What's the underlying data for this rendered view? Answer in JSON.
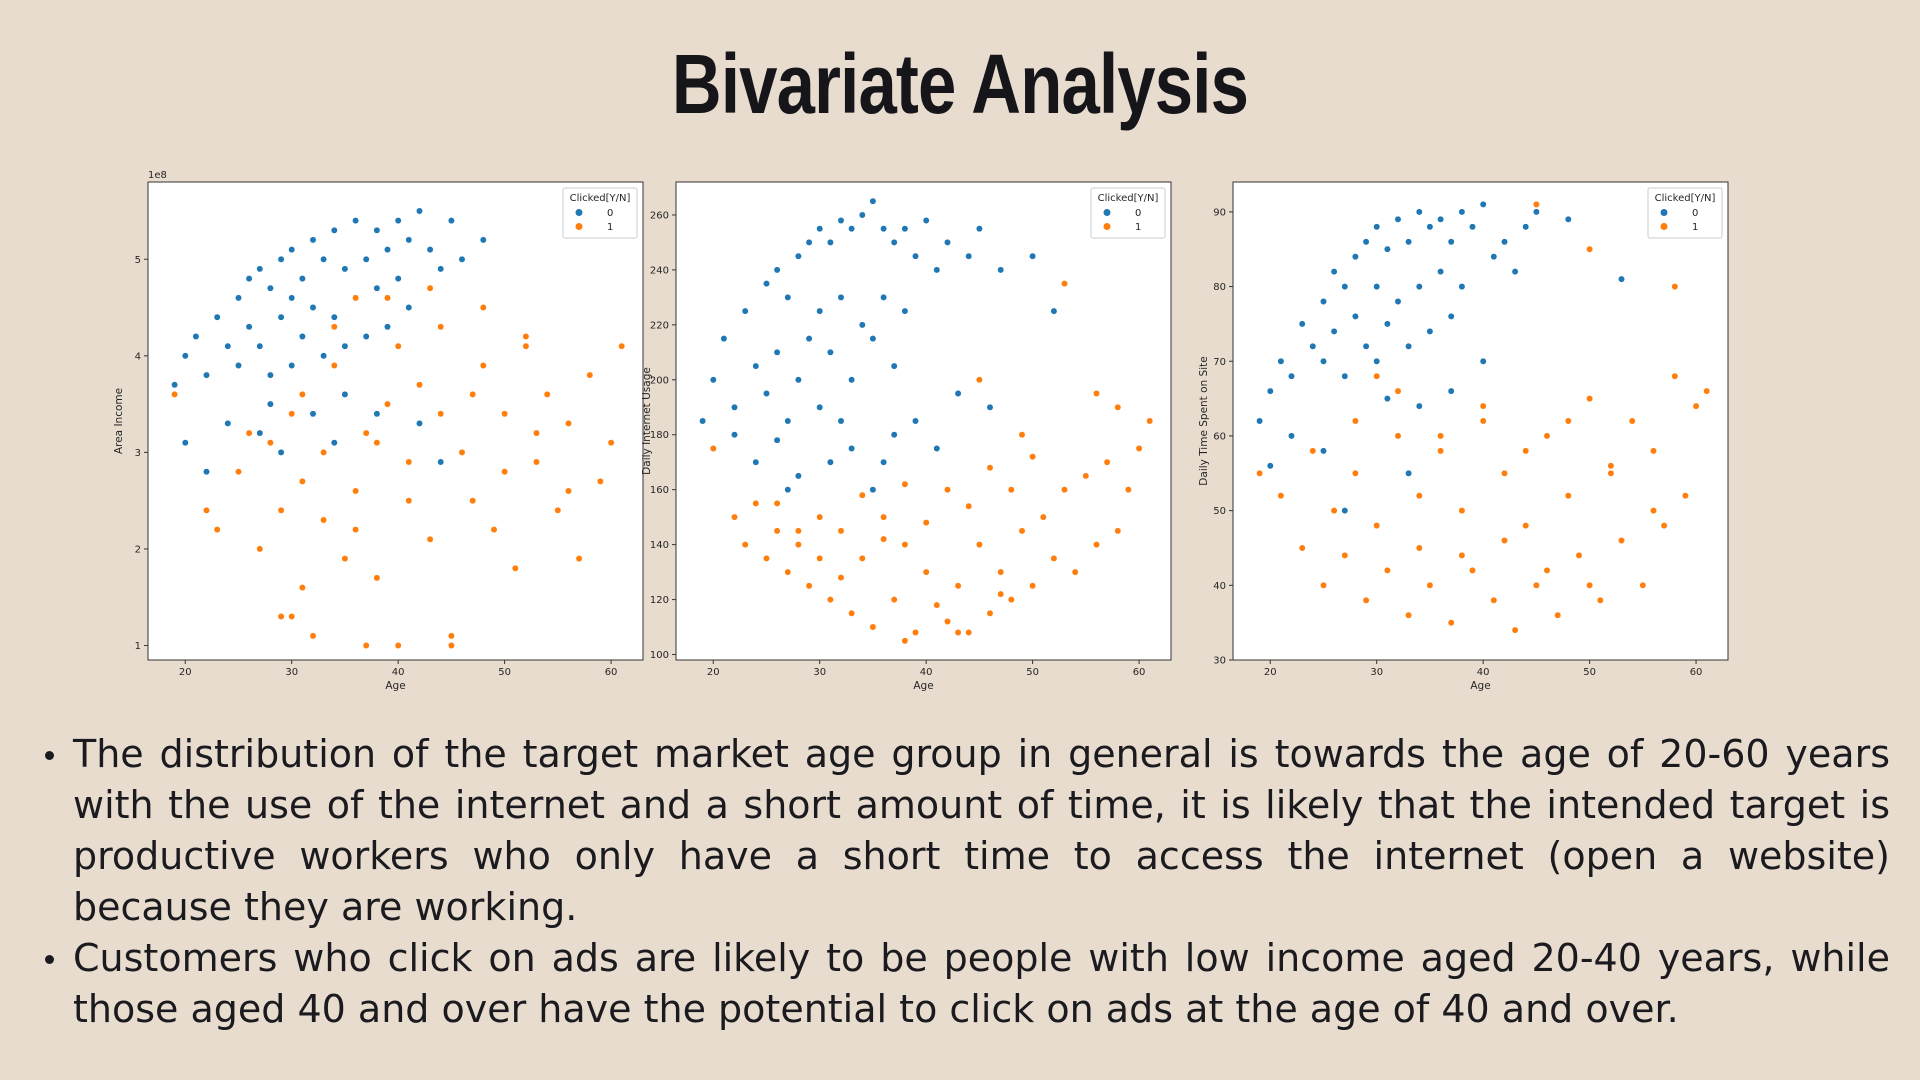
{
  "slide": {
    "title": "Bivariate Analysis",
    "bullets": [
      "The distribution of the target market age group in general is towards the age of 20-60 years with the use of the internet and a short amount of time, it is likely that the intended target is productive workers who only have a short time to access the internet (open a website) because they are working.",
      "Customers who click on ads are likely to be people with low income aged 20-40 years, while those aged 40 and over have the potential to click on ads at the age of 40 and over."
    ]
  },
  "chart_data": [
    {
      "type": "scatter",
      "xlabel": "Age",
      "ylabel": "Area Income",
      "y_scale_label": "1e8",
      "xlim": [
        16.5,
        63
      ],
      "ylim": [
        0.85,
        5.8
      ],
      "xticks": [
        20,
        30,
        40,
        50,
        60
      ],
      "yticks": [
        1,
        2,
        3,
        4,
        5
      ],
      "grid": false,
      "legend": {
        "title": "Clicked[Y/N]",
        "placement": "top-right",
        "entries": [
          "0",
          "1"
        ]
      },
      "colors": {
        "0": "#1f77b4",
        "1": "#ff7f0e"
      },
      "series": [
        {
          "name": "0",
          "x": [
            19,
            20,
            21,
            22,
            23,
            24,
            25,
            25,
            26,
            26,
            27,
            27,
            28,
            28,
            29,
            29,
            30,
            30,
            30,
            31,
            31,
            32,
            32,
            33,
            33,
            34,
            34,
            35,
            35,
            36,
            36,
            37,
            37,
            38,
            38,
            39,
            39,
            40,
            40,
            41,
            41,
            42,
            43,
            44,
            45,
            46,
            48,
            35,
            32,
            28,
            24,
            20,
            22,
            27,
            34,
            38,
            42,
            46,
            44,
            29
          ],
          "y": [
            3.7,
            4.0,
            4.2,
            3.8,
            4.4,
            4.1,
            4.6,
            3.9,
            4.8,
            4.3,
            4.9,
            4.1,
            4.7,
            3.8,
            5.0,
            4.4,
            5.1,
            4.6,
            3.9,
            4.8,
            4.2,
            5.2,
            4.5,
            5.0,
            4.0,
            5.3,
            4.4,
            4.9,
            4.1,
            5.4,
            4.6,
            5.0,
            4.2,
            5.3,
            4.7,
            5.1,
            4.3,
            5.4,
            4.8,
            5.2,
            4.5,
            5.5,
            5.1,
            4.9,
            5.4,
            5.0,
            5.2,
            3.6,
            3.4,
            3.5,
            3.3,
            3.1,
            2.8,
            3.2,
            3.1,
            3.4,
            3.3,
            3.0,
            2.9,
            3.0
          ]
        },
        {
          "name": "1",
          "x": [
            19,
            22,
            23,
            25,
            27,
            28,
            29,
            30,
            31,
            31,
            32,
            33,
            34,
            35,
            36,
            36,
            37,
            38,
            39,
            40,
            40,
            41,
            42,
            43,
            44,
            45,
            46,
            47,
            48,
            49,
            50,
            51,
            52,
            53,
            54,
            55,
            56,
            57,
            58,
            59,
            60,
            61,
            26,
            30,
            33,
            36,
            38,
            41,
            44,
            47,
            50,
            53,
            56,
            34,
            39,
            43,
            48,
            52,
            31,
            29,
            37,
            45
          ],
          "y": [
            3.6,
            2.4,
            2.2,
            2.8,
            2.0,
            3.1,
            2.4,
            1.3,
            3.6,
            2.7,
            1.1,
            2.3,
            3.9,
            1.9,
            4.6,
            2.6,
            3.2,
            1.7,
            3.5,
            4.1,
            1.0,
            2.9,
            3.7,
            2.1,
            4.3,
            1.1,
            3.0,
            2.5,
            3.9,
            2.2,
            3.4,
            1.8,
            4.2,
            2.9,
            3.6,
            2.4,
            3.3,
            1.9,
            3.8,
            2.7,
            3.1,
            4.1,
            3.2,
            3.4,
            3.0,
            2.2,
            3.1,
            2.5,
            3.4,
            3.6,
            2.8,
            3.2,
            2.6,
            4.3,
            4.6,
            4.7,
            4.5,
            4.1,
            1.6,
            1.3,
            1.0,
            1.0
          ]
        }
      ]
    },
    {
      "type": "scatter",
      "xlabel": "Age",
      "ylabel": "Daily Internet Usage",
      "xlim": [
        16.5,
        63
      ],
      "ylim": [
        98,
        272
      ],
      "xticks": [
        20,
        30,
        40,
        50,
        60
      ],
      "yticks": [
        100,
        120,
        140,
        160,
        180,
        200,
        220,
        240,
        260
      ],
      "grid": false,
      "legend": {
        "title": "Clicked[Y/N]",
        "placement": "top-right",
        "entries": [
          "0",
          "1"
        ]
      },
      "colors": {
        "0": "#1f77b4",
        "1": "#ff7f0e"
      },
      "series": [
        {
          "name": "0",
          "x": [
            19,
            20,
            21,
            22,
            23,
            24,
            25,
            25,
            26,
            26,
            27,
            27,
            28,
            28,
            29,
            29,
            30,
            30,
            30,
            31,
            31,
            32,
            32,
            33,
            33,
            34,
            34,
            35,
            35,
            36,
            36,
            37,
            37,
            38,
            38,
            39,
            40,
            41,
            42,
            44,
            45,
            47,
            50,
            52,
            24,
            28,
            33,
            37,
            41,
            46,
            22,
            27,
            31,
            35,
            39,
            43,
            20,
            26,
            32,
            36
          ],
          "y": [
            185,
            200,
            215,
            190,
            225,
            205,
            235,
            195,
            240,
            210,
            230,
            185,
            245,
            200,
            250,
            215,
            255,
            225,
            190,
            250,
            210,
            258,
            230,
            255,
            200,
            260,
            220,
            265,
            215,
            255,
            230,
            250,
            205,
            255,
            225,
            245,
            258,
            240,
            250,
            245,
            255,
            240,
            245,
            225,
            170,
            165,
            175,
            180,
            175,
            190,
            180,
            160,
            170,
            160,
            185,
            195,
            175,
            178,
            185,
            170
          ]
        },
        {
          "name": "1",
          "x": [
            20,
            22,
            23,
            24,
            25,
            26,
            27,
            28,
            29,
            30,
            31,
            32,
            33,
            34,
            35,
            36,
            37,
            38,
            39,
            40,
            41,
            42,
            43,
            44,
            45,
            46,
            47,
            48,
            49,
            50,
            51,
            52,
            53,
            54,
            55,
            56,
            57,
            58,
            59,
            60,
            61,
            34,
            38,
            42,
            46,
            50,
            36,
            40,
            44,
            48,
            32,
            30,
            28,
            26,
            45,
            53,
            49,
            56,
            58,
            38,
            43,
            47
          ],
          "y": [
            175,
            150,
            140,
            155,
            135,
            145,
            130,
            140,
            125,
            150,
            120,
            145,
            115,
            135,
            110,
            150,
            120,
            140,
            108,
            130,
            118,
            112,
            125,
            108,
            140,
            115,
            130,
            120,
            145,
            125,
            150,
            135,
            160,
            130,
            165,
            140,
            170,
            145,
            160,
            175,
            185,
            158,
            162,
            160,
            168,
            172,
            142,
            148,
            154,
            160,
            128,
            135,
            145,
            155,
            200,
            235,
            180,
            195,
            190,
            105,
            108,
            122
          ]
        }
      ]
    },
    {
      "type": "scatter",
      "xlabel": "Age",
      "ylabel": "Daily Time Spent on Site",
      "xlim": [
        16.5,
        63
      ],
      "ylim": [
        30,
        94
      ],
      "xticks": [
        20,
        30,
        40,
        50,
        60
      ],
      "yticks": [
        30,
        40,
        50,
        60,
        70,
        80,
        90
      ],
      "grid": false,
      "legend": {
        "title": "Clicked[Y/N]",
        "placement": "top-right",
        "entries": [
          "0",
          "1"
        ]
      },
      "colors": {
        "0": "#1f77b4",
        "1": "#ff7f0e"
      },
      "series": [
        {
          "name": "0",
          "x": [
            19,
            20,
            21,
            22,
            23,
            24,
            25,
            25,
            26,
            26,
            27,
            27,
            28,
            28,
            29,
            29,
            30,
            30,
            30,
            31,
            31,
            32,
            32,
            33,
            33,
            34,
            34,
            35,
            35,
            36,
            36,
            37,
            37,
            38,
            38,
            39,
            40,
            41,
            42,
            43,
            44,
            45,
            48,
            53,
            22,
            25,
            28,
            31,
            34,
            37,
            40,
            20,
            27,
            33
          ],
          "y": [
            62,
            66,
            70,
            68,
            75,
            72,
            78,
            70,
            82,
            74,
            80,
            68,
            84,
            76,
            86,
            72,
            88,
            80,
            70,
            85,
            75,
            89,
            78,
            86,
            72,
            90,
            80,
            88,
            74,
            89,
            82,
            86,
            76,
            90,
            80,
            88,
            91,
            84,
            86,
            82,
            88,
            90,
            89,
            81,
            60,
            58,
            62,
            65,
            64,
            66,
            70,
            56,
            50,
            55
          ]
        },
        {
          "name": "1",
          "x": [
            19,
            21,
            23,
            24,
            25,
            26,
            27,
            28,
            29,
            30,
            31,
            32,
            33,
            34,
            35,
            36,
            37,
            38,
            39,
            40,
            41,
            42,
            43,
            44,
            45,
            46,
            47,
            48,
            49,
            50,
            51,
            52,
            53,
            54,
            55,
            56,
            57,
            58,
            59,
            60,
            61,
            28,
            32,
            36,
            40,
            44,
            48,
            52,
            56,
            30,
            34,
            38,
            42,
            46,
            50,
            45,
            50,
            58
          ],
          "y": [
            55,
            52,
            45,
            58,
            40,
            50,
            44,
            55,
            38,
            48,
            42,
            60,
            36,
            52,
            40,
            58,
            35,
            50,
            42,
            62,
            38,
            55,
            34,
            48,
            40,
            60,
            36,
            52,
            44,
            65,
            38,
            55,
            46,
            62,
            40,
            58,
            48,
            68,
            52,
            64,
            66,
            62,
            66,
            60,
            64,
            58,
            62,
            56,
            50,
            68,
            45,
            44,
            46,
            42,
            40,
            91,
            85,
            80
          ]
        }
      ]
    }
  ]
}
